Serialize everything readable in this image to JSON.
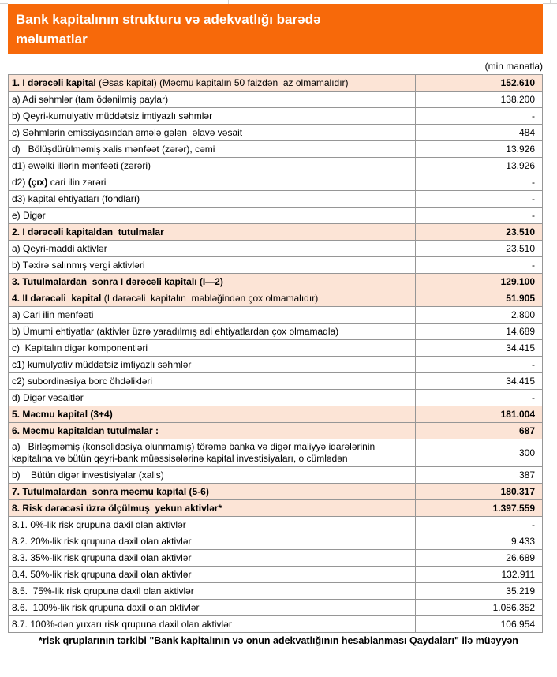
{
  "colors": {
    "header_bg": "#F7690A",
    "header_text": "#ffffff",
    "section_row_bg": "#FCE4D6",
    "table_border": "#969696",
    "gridline": "#d0d0d0"
  },
  "header": {
    "title_lines": [
      "Bank kapitalının strukturu və adekvatlığı barədə",
      "məlumatlar"
    ]
  },
  "units_label": "(min manatla)",
  "table": {
    "rows": [
      {
        "fill": "peach",
        "indent": 0,
        "value": "152.610",
        "value_bold": true,
        "parts": [
          {
            "text": "1. I dərəcəli kapital",
            "bold": true
          },
          {
            "text": " (Əsas kapital) (Məcmu kapitalın 50 faizdən  az olmamalıdır)",
            "bold": false
          }
        ]
      },
      {
        "fill": "white",
        "indent": 1,
        "value": "138.200",
        "value_bold": false,
        "parts": [
          {
            "text": "a) Adi səhmlər (tam ödənilmiş paylar)",
            "bold": false
          }
        ]
      },
      {
        "fill": "white",
        "indent": 1,
        "value": "-",
        "value_bold": false,
        "parts": [
          {
            "text": "b) Qeyri-kumulyativ müddətsiz imtiyazlı səhmlər",
            "bold": false
          }
        ]
      },
      {
        "fill": "white",
        "indent": 1,
        "value": "484",
        "value_bold": false,
        "parts": [
          {
            "text": "c) Səhmlərin emissiyasından əmələ gələn  əlavə vəsait",
            "bold": false
          }
        ]
      },
      {
        "fill": "white",
        "indent": 1,
        "value": "13.926",
        "value_bold": false,
        "parts": [
          {
            "text": "d)   Bölüşdürülməmiş xalis mənfəət (zərər), cəmi",
            "bold": false
          }
        ]
      },
      {
        "fill": "white",
        "indent": 2,
        "value": "13.926",
        "value_bold": false,
        "parts": [
          {
            "text": "d1) əwəlki illərin mənfəəti (zərəri)",
            "bold": false
          }
        ]
      },
      {
        "fill": "white",
        "indent": 2,
        "value": "-",
        "value_bold": false,
        "parts": [
          {
            "text": "d2) ",
            "bold": false
          },
          {
            "text": "(çıx)",
            "bold": true
          },
          {
            "text": " cari ilin zərəri",
            "bold": false
          }
        ]
      },
      {
        "fill": "white",
        "indent": 2,
        "value": "-",
        "value_bold": false,
        "parts": [
          {
            "text": "d3) kapital ehtiyatları (fondları)",
            "bold": false
          }
        ]
      },
      {
        "fill": "white",
        "indent": 1,
        "value": "-",
        "value_bold": false,
        "parts": [
          {
            "text": "e) Digər",
            "bold": false
          }
        ]
      },
      {
        "fill": "peach",
        "indent": 0,
        "value": "23.510",
        "value_bold": true,
        "parts": [
          {
            "text": "2. I dərəcəli kapitaldan  tutulmalar",
            "bold": true
          }
        ]
      },
      {
        "fill": "white",
        "indent": 1,
        "value": "23.510",
        "value_bold": false,
        "parts": [
          {
            "text": "a) Qeyri-maddi aktivlər",
            "bold": false
          }
        ]
      },
      {
        "fill": "white",
        "indent": 1,
        "value": "-",
        "value_bold": false,
        "parts": [
          {
            "text": "b) Təxirə salınmış vergi aktivləri",
            "bold": false
          }
        ]
      },
      {
        "fill": "peach",
        "indent": 0,
        "value": "129.100",
        "value_bold": true,
        "parts": [
          {
            "text": "3. Tutulmalardan  sonra I dərəcəli kapitalı (I—2)",
            "bold": true
          }
        ]
      },
      {
        "fill": "peach",
        "indent": 0,
        "value": "51.905",
        "value_bold": true,
        "parts": [
          {
            "text": "4. II dərəcəli  kapital",
            "bold": true
          },
          {
            "text": " (I dərəcəli  kapitalın  məbləğindən çox olmamalıdır)",
            "bold": false
          }
        ]
      },
      {
        "fill": "white",
        "indent": 1,
        "value": "2.800",
        "value_bold": false,
        "parts": [
          {
            "text": "a) Cari ilin mənfəəti",
            "bold": false
          }
        ]
      },
      {
        "fill": "white",
        "indent": 1,
        "value": "14.689",
        "value_bold": false,
        "parts": [
          {
            "text": "b) Ümumi ehtiyatlar (aktivlər üzrə yaradılmış adi ehtiyatlardan çox olmamaqla)",
            "bold": false
          }
        ]
      },
      {
        "fill": "white",
        "indent": 1,
        "value": "34.415",
        "value_bold": false,
        "parts": [
          {
            "text": "c)  Kapitalın digər komponentləri",
            "bold": false
          }
        ]
      },
      {
        "fill": "white",
        "indent": 2,
        "value": "-",
        "value_bold": false,
        "parts": [
          {
            "text": "c1) kumulyativ müddətsiz imtiyazlı səhmlər",
            "bold": false
          }
        ]
      },
      {
        "fill": "white",
        "indent": 2,
        "value": "34.415",
        "value_bold": false,
        "parts": [
          {
            "text": "c2) subordinasiya borc öhdəlikləri",
            "bold": false
          }
        ]
      },
      {
        "fill": "white",
        "indent": 1,
        "value": "-",
        "value_bold": false,
        "parts": [
          {
            "text": "d) Digər vəsaitlər",
            "bold": false
          }
        ]
      },
      {
        "fill": "peach",
        "indent": 0,
        "value": "181.004",
        "value_bold": true,
        "parts": [
          {
            "text": "5. Məcmu kapital (3+4)",
            "bold": true
          }
        ]
      },
      {
        "fill": "peach",
        "indent": 0,
        "value": "687",
        "value_bold": true,
        "parts": [
          {
            "text": "6. Məcmu kapitaldan tutulmalar :",
            "bold": true
          }
        ]
      },
      {
        "fill": "white",
        "indent": 1,
        "value": "300",
        "value_bold": false,
        "parts": [
          {
            "text": "a)   Birləşməmiş (konsolidasiya olunmamış) törəmə banka və digər maliyyə idarələrinin kapitalına və bütün qeyri-bank müəssisələrinə kapital investisiyaları, o cümlədən",
            "bold": false
          }
        ]
      },
      {
        "fill": "white",
        "indent": 1,
        "value": "387",
        "value_bold": false,
        "parts": [
          {
            "text": "b)    Bütün digər investisiyalar (xalis)",
            "bold": false
          }
        ]
      },
      {
        "fill": "peach",
        "indent": 0,
        "value": "180.317",
        "value_bold": true,
        "parts": [
          {
            "text": "7. Tutulmalardan  sonra məcmu kapital (5-6)",
            "bold": true
          }
        ]
      },
      {
        "fill": "peach",
        "indent": 0,
        "value": "1.397.559",
        "value_bold": true,
        "parts": [
          {
            "text": "8. Risk dərəcəsi üzrə ölçülmuş  yekun aktivlər*",
            "bold": true
          }
        ]
      },
      {
        "fill": "white",
        "indent": 0,
        "value": "-",
        "value_bold": false,
        "parts": [
          {
            "text": "8.1. 0%-lik risk qrupuna daxil olan aktivlər",
            "bold": false
          }
        ]
      },
      {
        "fill": "white",
        "indent": 0,
        "value": "9.433",
        "value_bold": false,
        "parts": [
          {
            "text": "8.2. 20%-lik risk qrupuna daxil olan aktivlər",
            "bold": false
          }
        ]
      },
      {
        "fill": "white",
        "indent": 0,
        "value": "26.689",
        "value_bold": false,
        "parts": [
          {
            "text": "8.3. 35%-lik risk qrupuna daxil olan aktivlər",
            "bold": false
          }
        ]
      },
      {
        "fill": "white",
        "indent": 0,
        "value": "132.911",
        "value_bold": false,
        "parts": [
          {
            "text": "8.4. 50%-lik risk qrupuna daxil olan aktivlər",
            "bold": false
          }
        ]
      },
      {
        "fill": "white",
        "indent": 0,
        "value": "35.219",
        "value_bold": false,
        "parts": [
          {
            "text": "8.5.  75%-lik risk qrupuna daxil olan aktivlər",
            "bold": false
          }
        ]
      },
      {
        "fill": "white",
        "indent": 0,
        "value": "1.086.352",
        "value_bold": false,
        "parts": [
          {
            "text": "8.6.  100%-lik risk qrupuna daxil olan aktivlər",
            "bold": false
          }
        ]
      },
      {
        "fill": "white",
        "indent": 0,
        "value": "106.954",
        "value_bold": false,
        "parts": [
          {
            "text": "8.7. 100%-dən yuxarı risk qrupuna daxil olan aktivlər",
            "bold": false
          }
        ]
      }
    ]
  },
  "footer_note": "*risk qruplarının tərkibi \"Bank kapitalının və onun adekvatlığının hesablanması Qaydaları\" ilə müəyyən"
}
